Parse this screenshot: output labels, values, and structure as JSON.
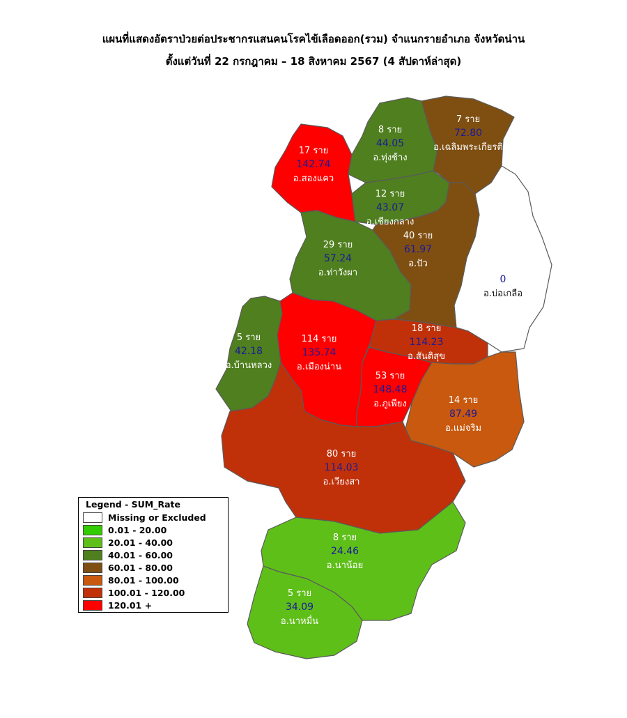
{
  "title": {
    "line1": "แผนที่แสดงอัตราป่วยต่อประชากรแสนคนโรคไข้เลือดออก(รวม) จำแนกรายอำเภอ จังหวัดน่าน",
    "line2": "ตั้งแต่วันที่  22 กรกฎาคม – 18 สิงหาคม 2567 (4 สัปดาห์ล่าสุด)"
  },
  "legend": {
    "title": "Legend - SUM_Rate",
    "items": [
      {
        "label": "Missing or Excluded",
        "color": "#ffffff"
      },
      {
        "label": "0.01 - 20.00",
        "color": "#33cc00"
      },
      {
        "label": "20.01 - 40.00",
        "color": "#5fbf19"
      },
      {
        "label": "40.01 - 60.00",
        "color": "#4f7f1e"
      },
      {
        "label": "60.01 - 80.00",
        "color": "#7f4f12"
      },
      {
        "label": "80.01 - 100.00",
        "color": "#c8590e"
      },
      {
        "label": "100.01 - 120.00",
        "color": "#c0310a"
      },
      {
        "label": "120.01 +",
        "color": "#ff0000"
      }
    ]
  },
  "districts": [
    {
      "name": "อ.สองแคว",
      "cases": "17 ราย",
      "rate": "142.74",
      "color": "#ff0000"
    },
    {
      "name": "อ.ทุ่งช้าง",
      "cases": "8 ราย",
      "rate": "44.05",
      "color": "#4f7f1e"
    },
    {
      "name": "อ.เฉลิมพระเกียรติ",
      "cases": "7 ราย",
      "rate": "72.80",
      "color": "#7f4f12"
    },
    {
      "name": "อ.เชียงกลาง",
      "cases": "12 ราย",
      "rate": "43.07",
      "color": "#4f7f1e"
    },
    {
      "name": "อ.ท่าวังผา",
      "cases": "29 ราย",
      "rate": "57.24",
      "color": "#4f7f1e"
    },
    {
      "name": "อ.ปัว",
      "cases": "40 ราย",
      "rate": "61.97",
      "color": "#7f4f12"
    },
    {
      "name": "อ.บ่อเกลือ",
      "cases": "",
      "rate": "0",
      "color": "#ffffff"
    },
    {
      "name": "อ.บ้านหลวง",
      "cases": "5 ราย",
      "rate": "42.18",
      "color": "#4f7f1e"
    },
    {
      "name": "อ.เมืองน่าน",
      "cases": "114 ราย",
      "rate": "135.74",
      "color": "#ff0000"
    },
    {
      "name": "อ.สันติสุข",
      "cases": "18 ราย",
      "rate": "114.23",
      "color": "#c0310a"
    },
    {
      "name": "อ.ภูเพียง",
      "cases": "53 ราย",
      "rate": "148.48",
      "color": "#ff0000"
    },
    {
      "name": "อ.แม่จริม",
      "cases": "14 ราย",
      "rate": "87.49",
      "color": "#c8590e"
    },
    {
      "name": "อ.เวียงสา",
      "cases": "80 ราย",
      "rate": "114.03",
      "color": "#c0310a"
    },
    {
      "name": "อ.นาน้อย",
      "cases": "8 ราย",
      "rate": "24.46",
      "color": "#5fbf19"
    },
    {
      "name": "อ.นาหมื่น",
      "cases": "5 ราย",
      "rate": "34.09",
      "color": "#5fbf19"
    }
  ]
}
